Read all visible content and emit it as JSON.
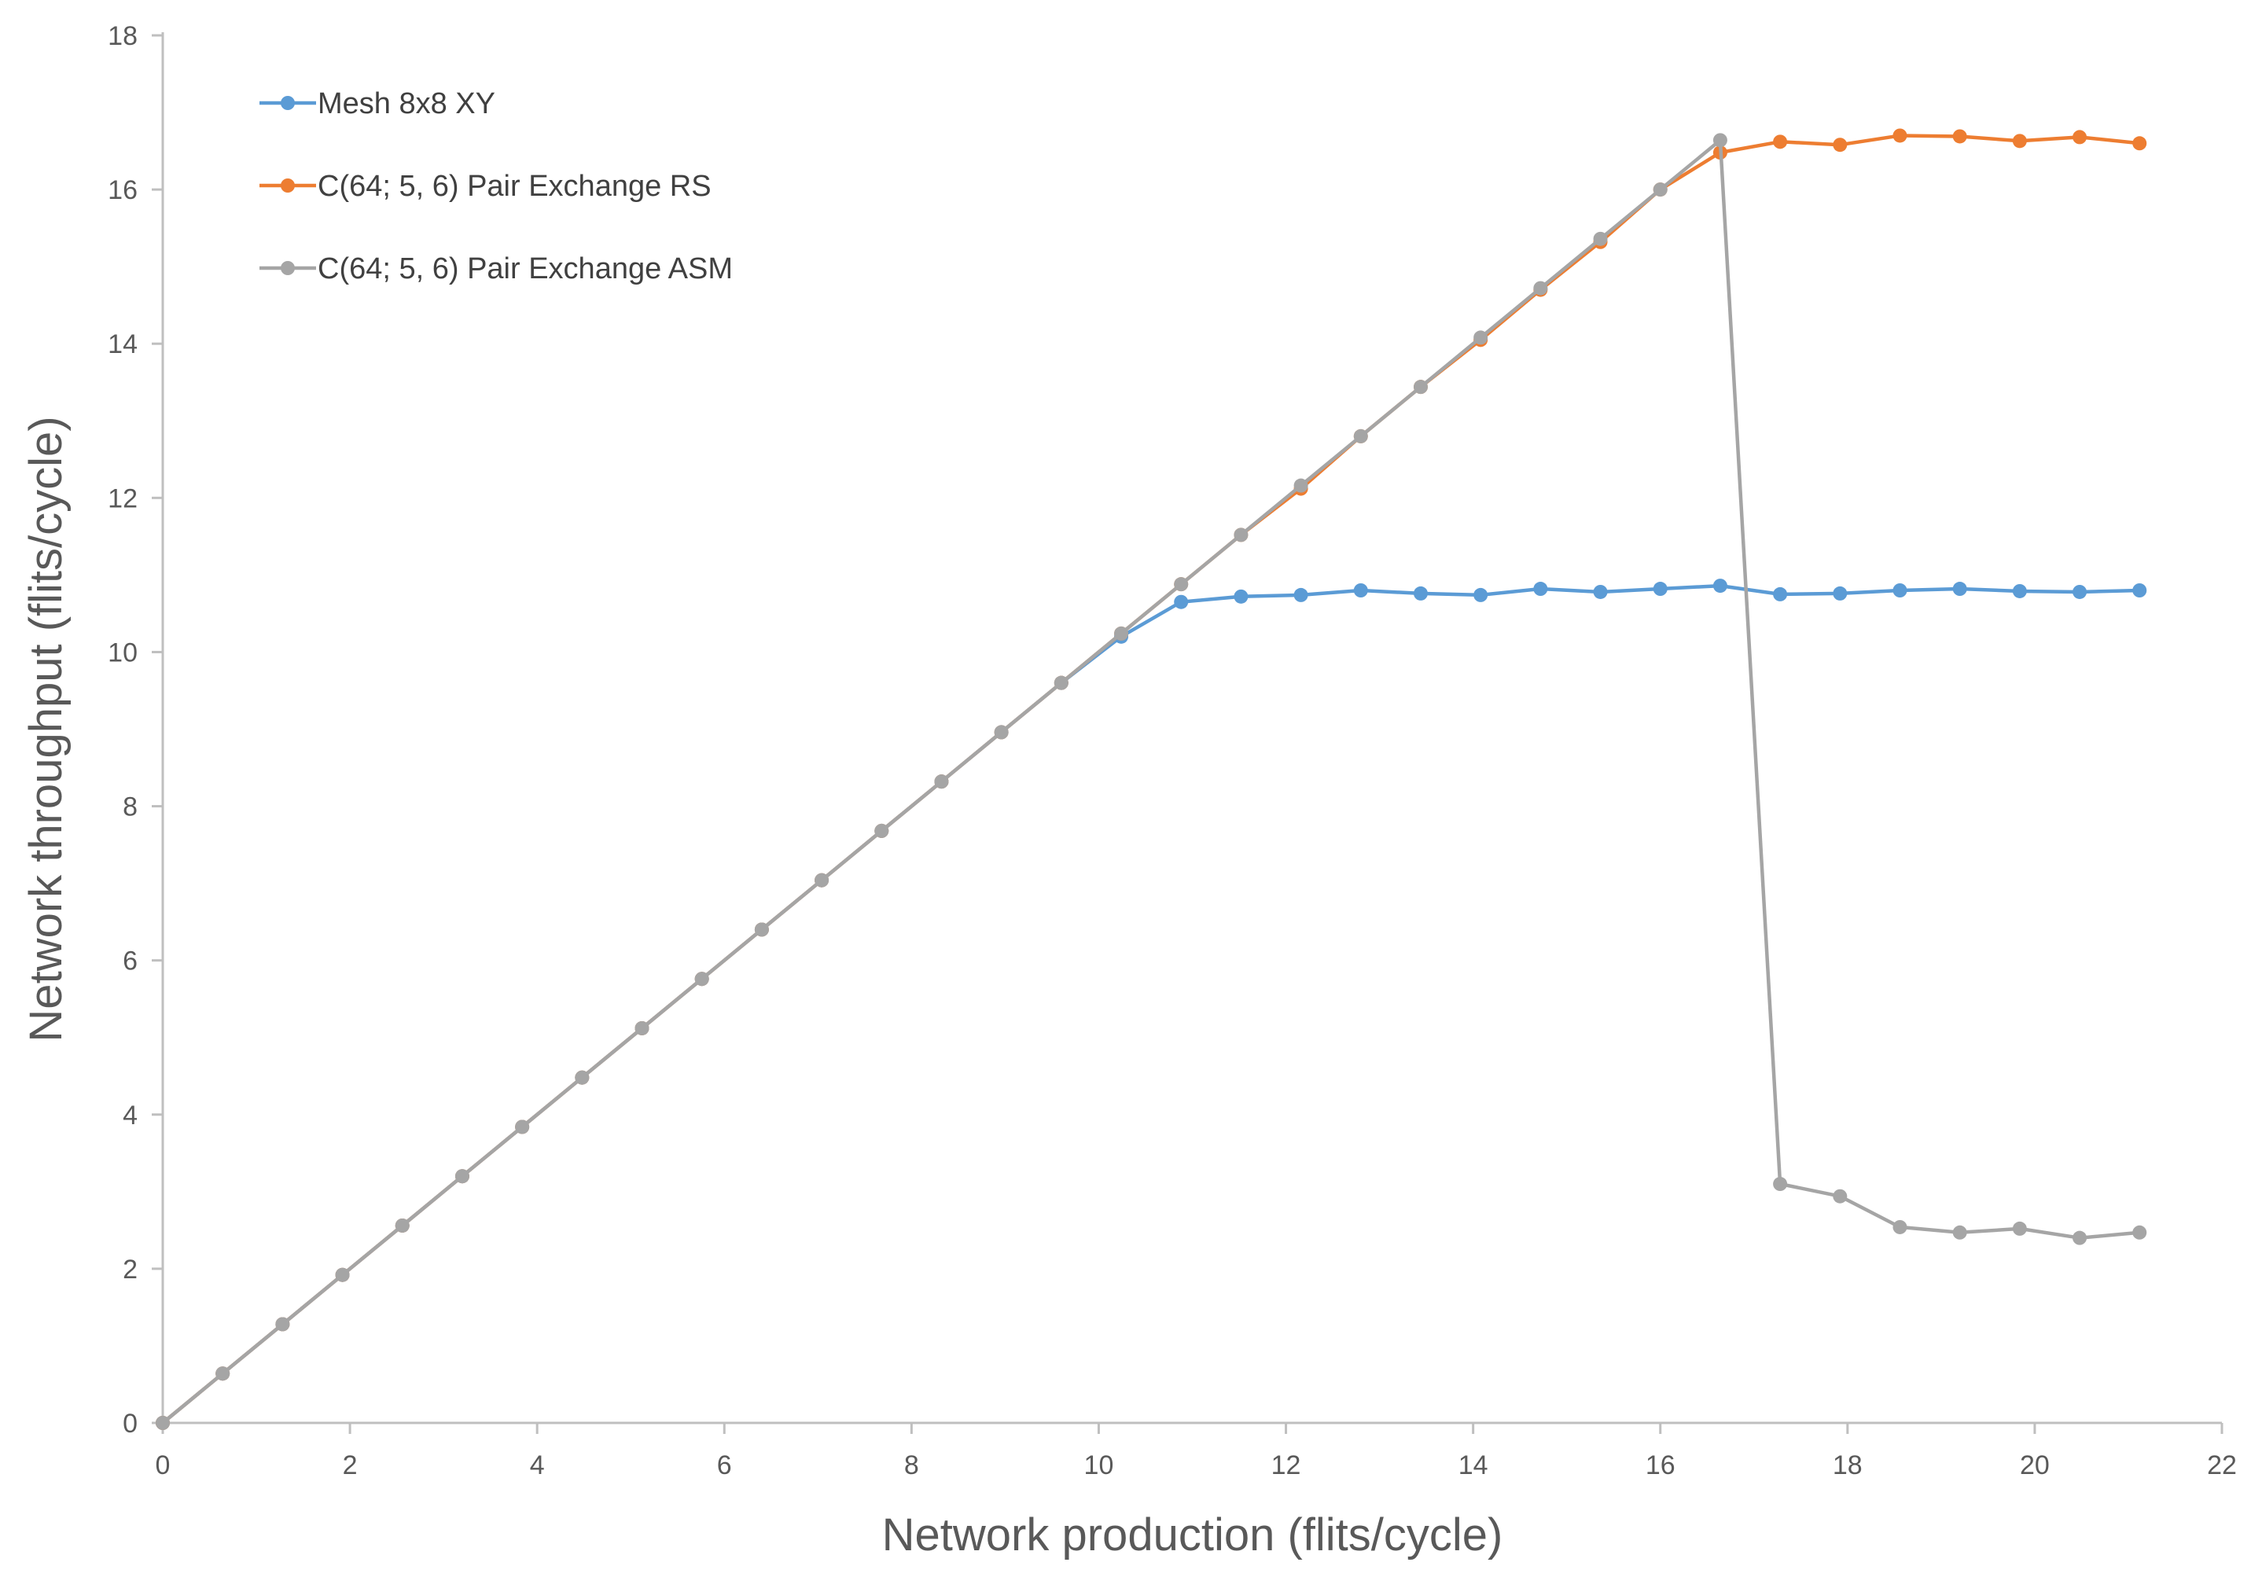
{
  "chart_data": {
    "type": "line",
    "title": "",
    "xlabel": "Network production (flits/cycle)",
    "ylabel": "Network throughput (flits/cycle)",
    "xlim": [
      0,
      22
    ],
    "ylim": [
      0,
      18
    ],
    "xticks": [
      0,
      2,
      4,
      6,
      8,
      10,
      12,
      14,
      16,
      18,
      20,
      22
    ],
    "yticks": [
      0,
      2,
      4,
      6,
      8,
      10,
      12,
      14,
      16,
      18
    ],
    "grid": false,
    "legend_position": "top-left",
    "series": [
      {
        "name": "Mesh 8x8 XY",
        "color": "#5B9BD5",
        "x": [
          0,
          0.64,
          1.28,
          1.92,
          2.56,
          3.2,
          3.84,
          4.48,
          5.12,
          5.76,
          6.4,
          7.04,
          7.68,
          8.32,
          8.96,
          9.6,
          10.24,
          10.88,
          11.52,
          12.16,
          12.8,
          13.44,
          14.08,
          14.72,
          15.36,
          16.0,
          16.64,
          17.28,
          17.92,
          18.56,
          19.2,
          19.84,
          20.48,
          21.12
        ],
        "y": [
          0,
          0.64,
          1.28,
          1.92,
          2.56,
          3.2,
          3.84,
          4.48,
          5.12,
          5.76,
          6.4,
          7.04,
          7.68,
          8.32,
          8.96,
          9.6,
          10.2,
          10.65,
          10.72,
          10.74,
          10.8,
          10.76,
          10.74,
          10.82,
          10.78,
          10.82,
          10.86,
          10.75,
          10.76,
          10.8,
          10.82,
          10.79,
          10.78,
          10.8
        ]
      },
      {
        "name": "C(64; 5, 6) Pair Exchange RS",
        "color": "#ED7D31",
        "x": [
          0,
          0.64,
          1.28,
          1.92,
          2.56,
          3.2,
          3.84,
          4.48,
          5.12,
          5.76,
          6.4,
          7.04,
          7.68,
          8.32,
          8.96,
          9.6,
          10.24,
          10.88,
          11.52,
          12.16,
          12.8,
          13.44,
          14.08,
          14.72,
          15.36,
          16.0,
          16.64,
          17.28,
          17.92,
          18.56,
          19.2,
          19.84,
          20.48,
          21.12
        ],
        "y": [
          0,
          0.64,
          1.28,
          1.92,
          2.56,
          3.2,
          3.84,
          4.48,
          5.12,
          5.76,
          6.4,
          7.04,
          7.68,
          8.32,
          8.96,
          9.6,
          10.24,
          10.88,
          11.52,
          12.12,
          12.8,
          13.44,
          14.05,
          14.7,
          15.32,
          16.0,
          16.48,
          16.62,
          16.58,
          16.7,
          16.69,
          16.63,
          16.68,
          16.6
        ]
      },
      {
        "name": "C(64; 5, 6) Pair Exchange ASM",
        "color": "#A5A5A5",
        "x": [
          0,
          0.64,
          1.28,
          1.92,
          2.56,
          3.2,
          3.84,
          4.48,
          5.12,
          5.76,
          6.4,
          7.04,
          7.68,
          8.32,
          8.96,
          9.6,
          10.24,
          10.88,
          11.52,
          12.16,
          12.8,
          13.44,
          14.08,
          14.72,
          15.36,
          16.0,
          16.64,
          17.28,
          17.92,
          18.56,
          19.2,
          19.84,
          20.48,
          21.12
        ],
        "y": [
          0,
          0.64,
          1.28,
          1.92,
          2.56,
          3.2,
          3.84,
          4.48,
          5.12,
          5.76,
          6.4,
          7.04,
          7.68,
          8.32,
          8.96,
          9.6,
          10.24,
          10.88,
          11.52,
          12.16,
          12.8,
          13.44,
          14.08,
          14.72,
          15.36,
          16.0,
          16.64,
          3.1,
          2.94,
          2.54,
          2.47,
          2.52,
          2.4,
          2.47
        ]
      }
    ]
  }
}
